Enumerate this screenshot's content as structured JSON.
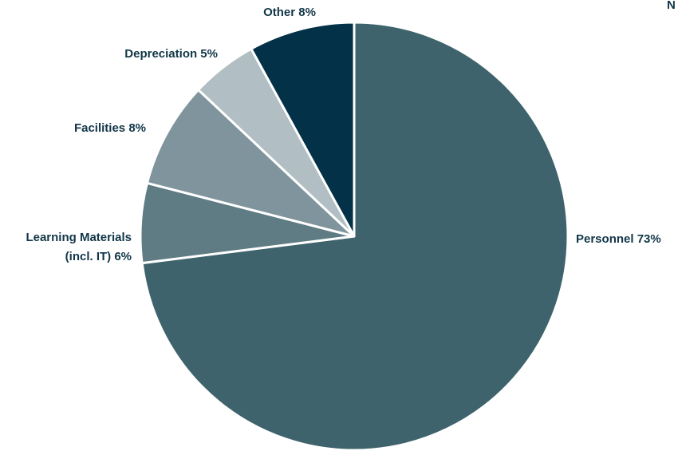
{
  "corner_text": "N",
  "chart_data": {
    "type": "pie",
    "title": "",
    "slices": [
      {
        "label": "Personnel 73%",
        "value": 73,
        "color": "#3e636c"
      },
      {
        "label": "Learning Materials (incl. IT) 6%",
        "value": 6,
        "color": "#5f7b84"
      },
      {
        "label": "Facilities 8%",
        "value": 8,
        "color": "#7f949c"
      },
      {
        "label": "Depreciation 5%",
        "value": 5,
        "color": "#b1bec3"
      },
      {
        "label": "Other 8%",
        "value": 8,
        "color": "#033147"
      }
    ]
  }
}
